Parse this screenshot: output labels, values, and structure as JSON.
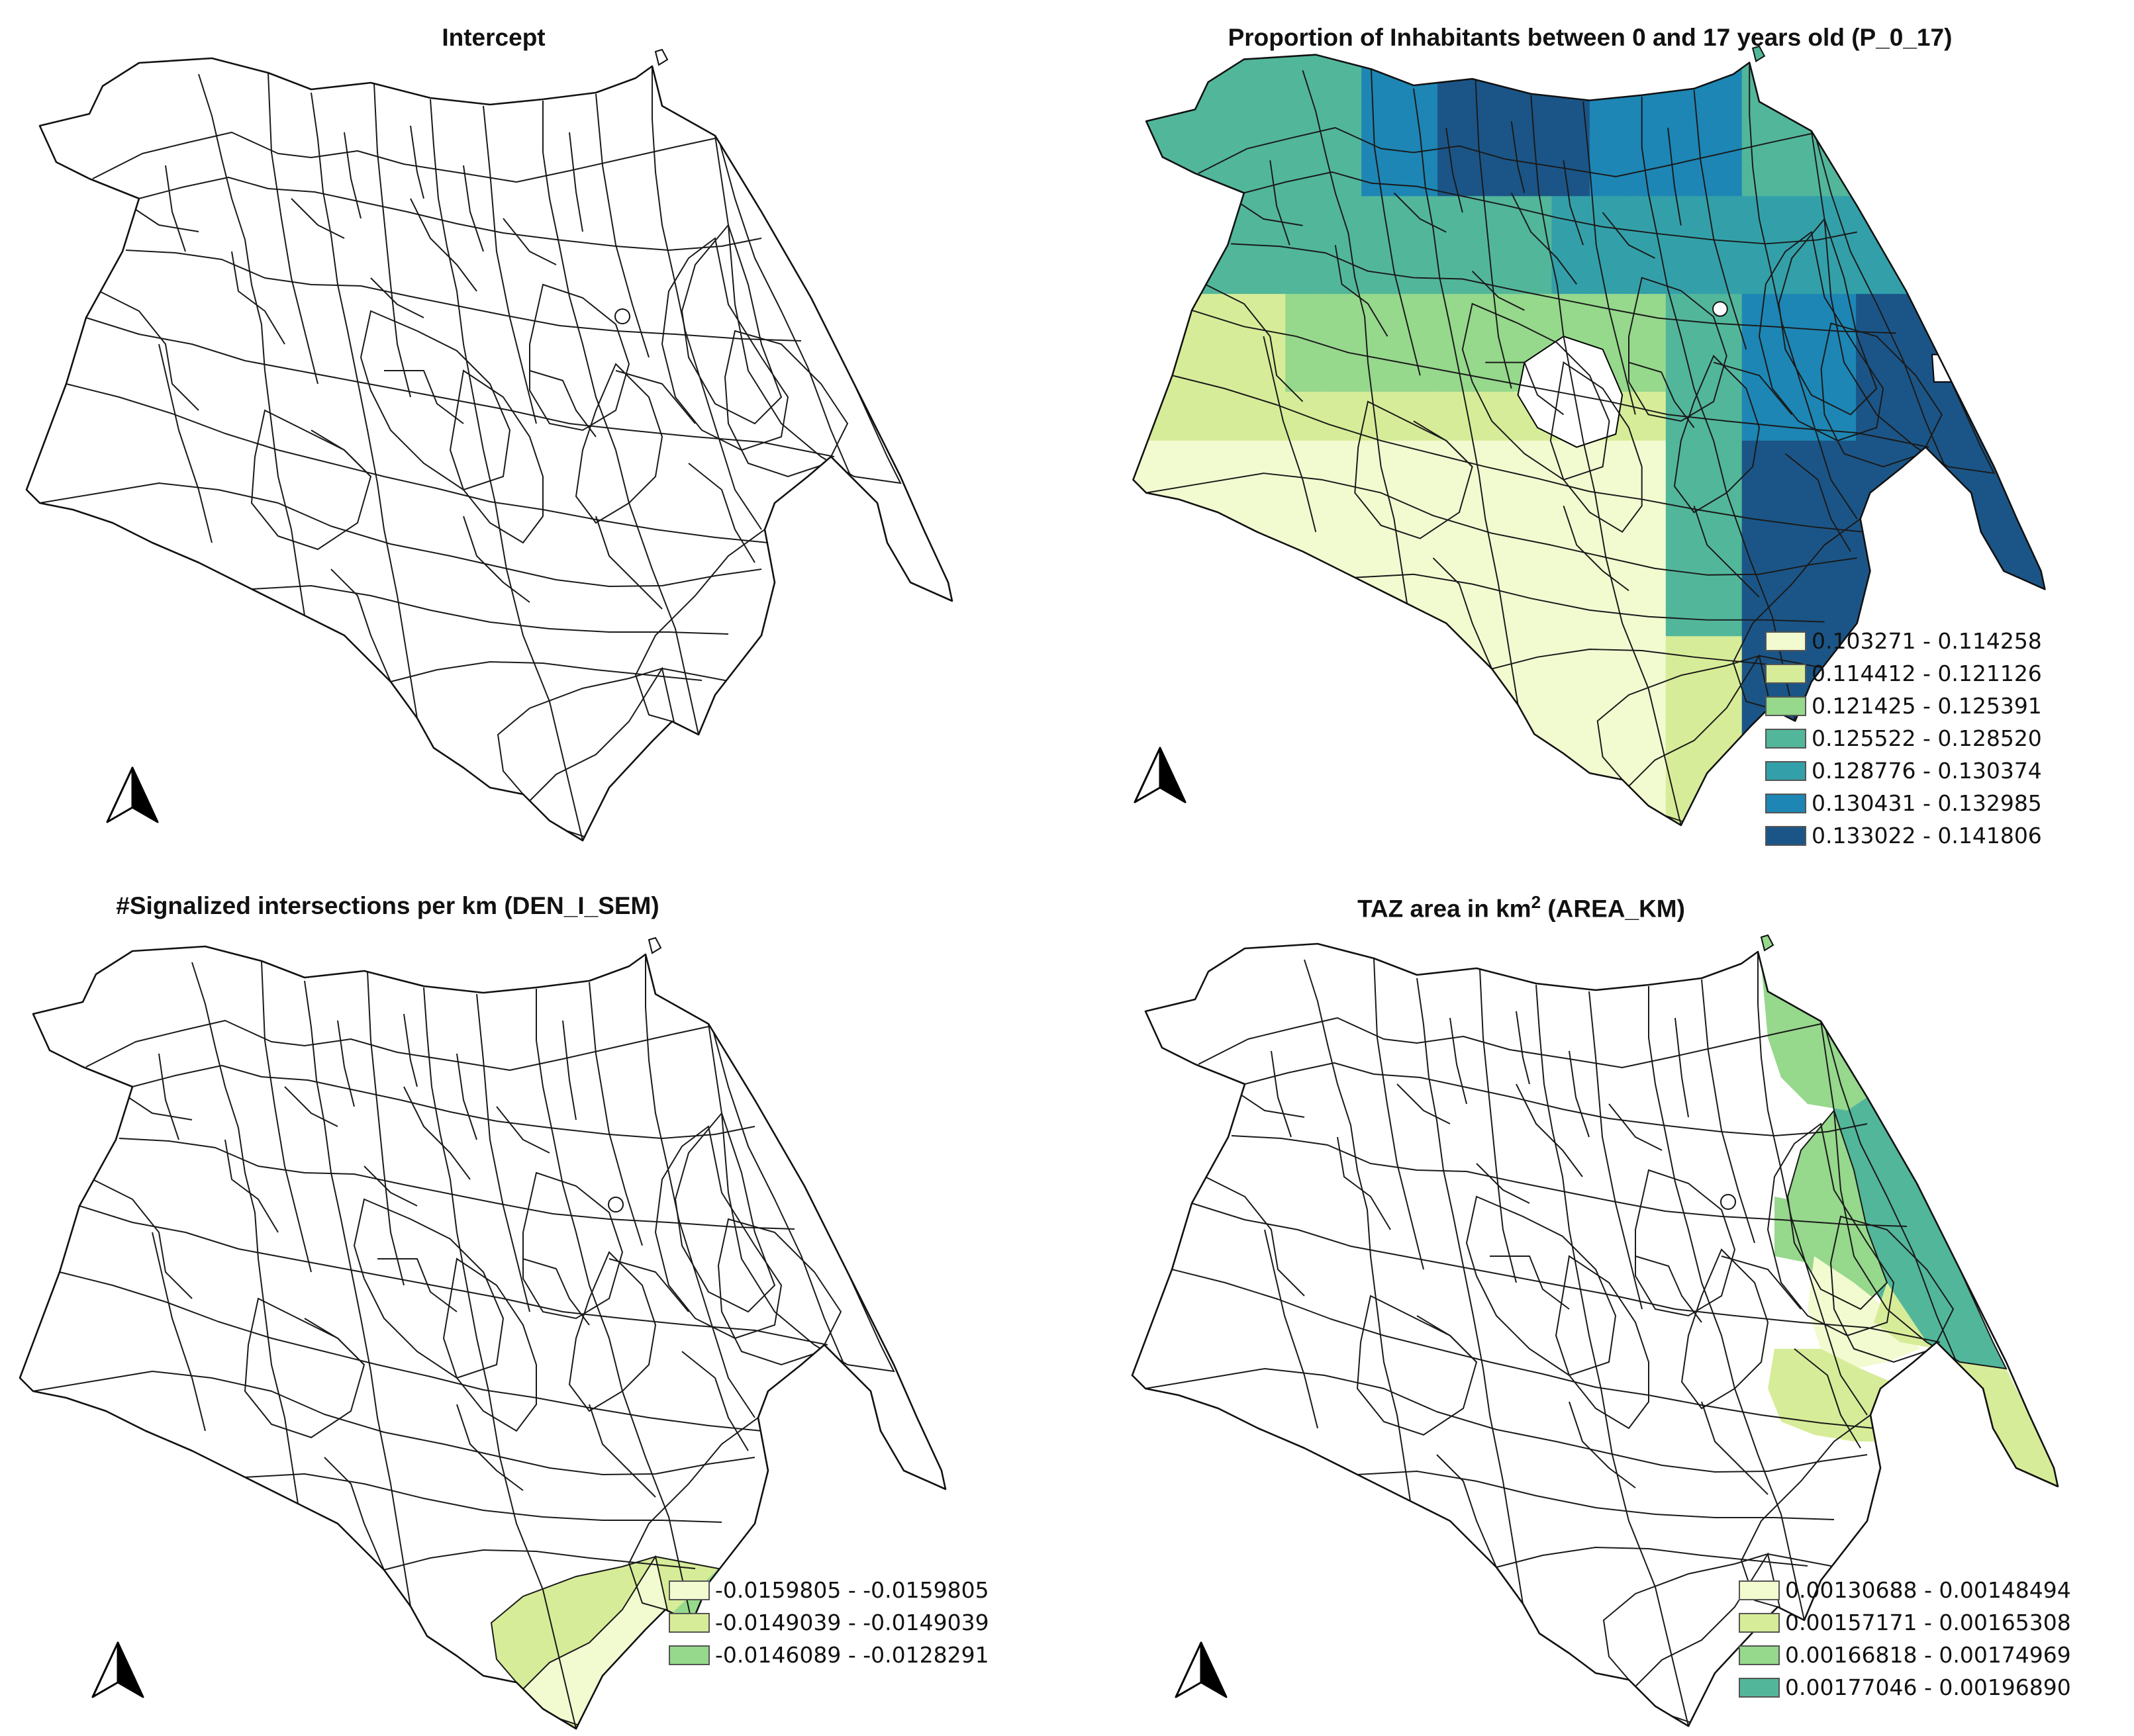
{
  "panels": [
    {
      "title": "Intercept",
      "legend": []
    },
    {
      "title": "Proportion of Inhabitants between 0 and 17 years old (P_0_17)",
      "legend": [
        {
          "label": "0.103271 - 0.114258",
          "color": "#f2fad0"
        },
        {
          "label": "0.114412 - 0.121126",
          "color": "#d7ec98"
        },
        {
          "label": "0.121425 - 0.125391",
          "color": "#96d88c"
        },
        {
          "label": "0.125522 - 0.128520",
          "color": "#52b69a"
        },
        {
          "label": "0.128776 - 0.130374",
          "color": "#33a0a9"
        },
        {
          "label": "0.130431 - 0.132985",
          "color": "#1d86b4"
        },
        {
          "label": "0.133022 - 0.141806",
          "color": "#1b5587"
        }
      ]
    },
    {
      "title": "#Signalized intersections per km (DEN_I_SEM)",
      "legend": [
        {
          "label": "-0.0159805 - -0.0159805",
          "color": "#f2fad0"
        },
        {
          "label": "-0.0149039 - -0.0149039",
          "color": "#d7ec98"
        },
        {
          "label": "-0.0146089 - -0.0128291",
          "color": "#96d88c"
        }
      ]
    },
    {
      "title": "TAZ area in km",
      "title_sup": "2",
      "title_suffix": " (AREA_KM)",
      "legend": [
        {
          "label": "0.00130688 - 0.00148494",
          "color": "#f2fad0"
        },
        {
          "label": "0.00157171 - 0.00165308",
          "color": "#d7ec98"
        },
        {
          "label": "0.00166818 - 0.00174969",
          "color": "#96d88c"
        },
        {
          "label": "0.00177046 - 0.00196890",
          "color": "#52b69a"
        }
      ]
    }
  ]
}
